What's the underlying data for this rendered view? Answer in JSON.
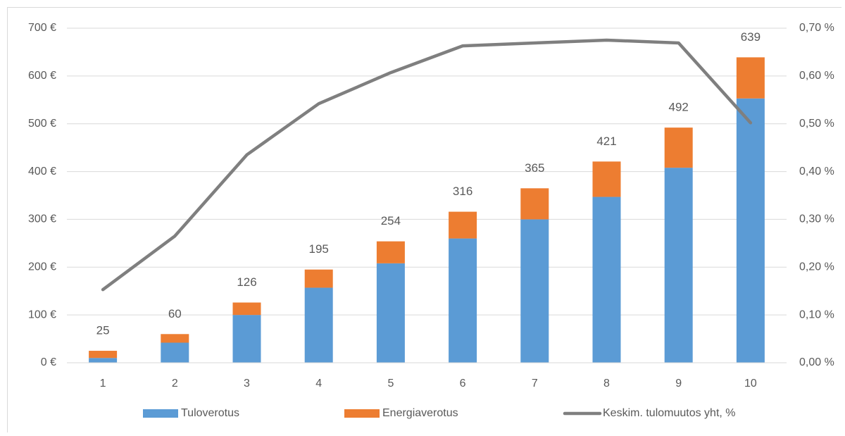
{
  "chart_data": {
    "type": "bar",
    "stacked": true,
    "categories": [
      "1",
      "2",
      "3",
      "4",
      "5",
      "6",
      "7",
      "8",
      "9",
      "10"
    ],
    "series": [
      {
        "name": "Tuloverotus",
        "type": "bar",
        "axis": "left",
        "color": "#5b9bd5",
        "values": [
          10,
          42,
          100,
          157,
          208,
          260,
          300,
          347,
          408,
          553
        ]
      },
      {
        "name": "Energiaverotus",
        "type": "bar",
        "axis": "left",
        "color": "#ed7d31",
        "values": [
          15,
          18,
          26,
          38,
          46,
          56,
          65,
          74,
          84,
          86
        ]
      },
      {
        "name": "Keskim. tulomuutos yht, %",
        "type": "line",
        "axis": "right",
        "color": "#7f7f7f",
        "values": [
          0.153,
          0.265,
          0.435,
          0.542,
          0.607,
          0.663,
          0.669,
          0.675,
          0.669,
          0.502
        ]
      }
    ],
    "totals": [
      "25",
      "60",
      "126",
      "195",
      "254",
      "316",
      "365",
      "421",
      "492",
      "639"
    ],
    "y_left": {
      "min": 0,
      "max": 700,
      "ticks": [
        0,
        100,
        200,
        300,
        400,
        500,
        600,
        700
      ],
      "tick_labels": [
        "0 €",
        "100 €",
        "200 €",
        "300 €",
        "400 €",
        "500 €",
        "600 €",
        "700 €"
      ]
    },
    "y_right": {
      "min": 0,
      "max": 0.7,
      "ticks": [
        0,
        0.1,
        0.2,
        0.3,
        0.4,
        0.5,
        0.6,
        0.7
      ],
      "tick_labels": [
        "0,00 %",
        "0,10 %",
        "0,20 %",
        "0,30 %",
        "0,40 %",
        "0,50 %",
        "0,60 %",
        "0,70 %"
      ]
    },
    "title": "",
    "xlabel": "",
    "ylabel": "",
    "grid": true,
    "legend_position": "bottom"
  }
}
